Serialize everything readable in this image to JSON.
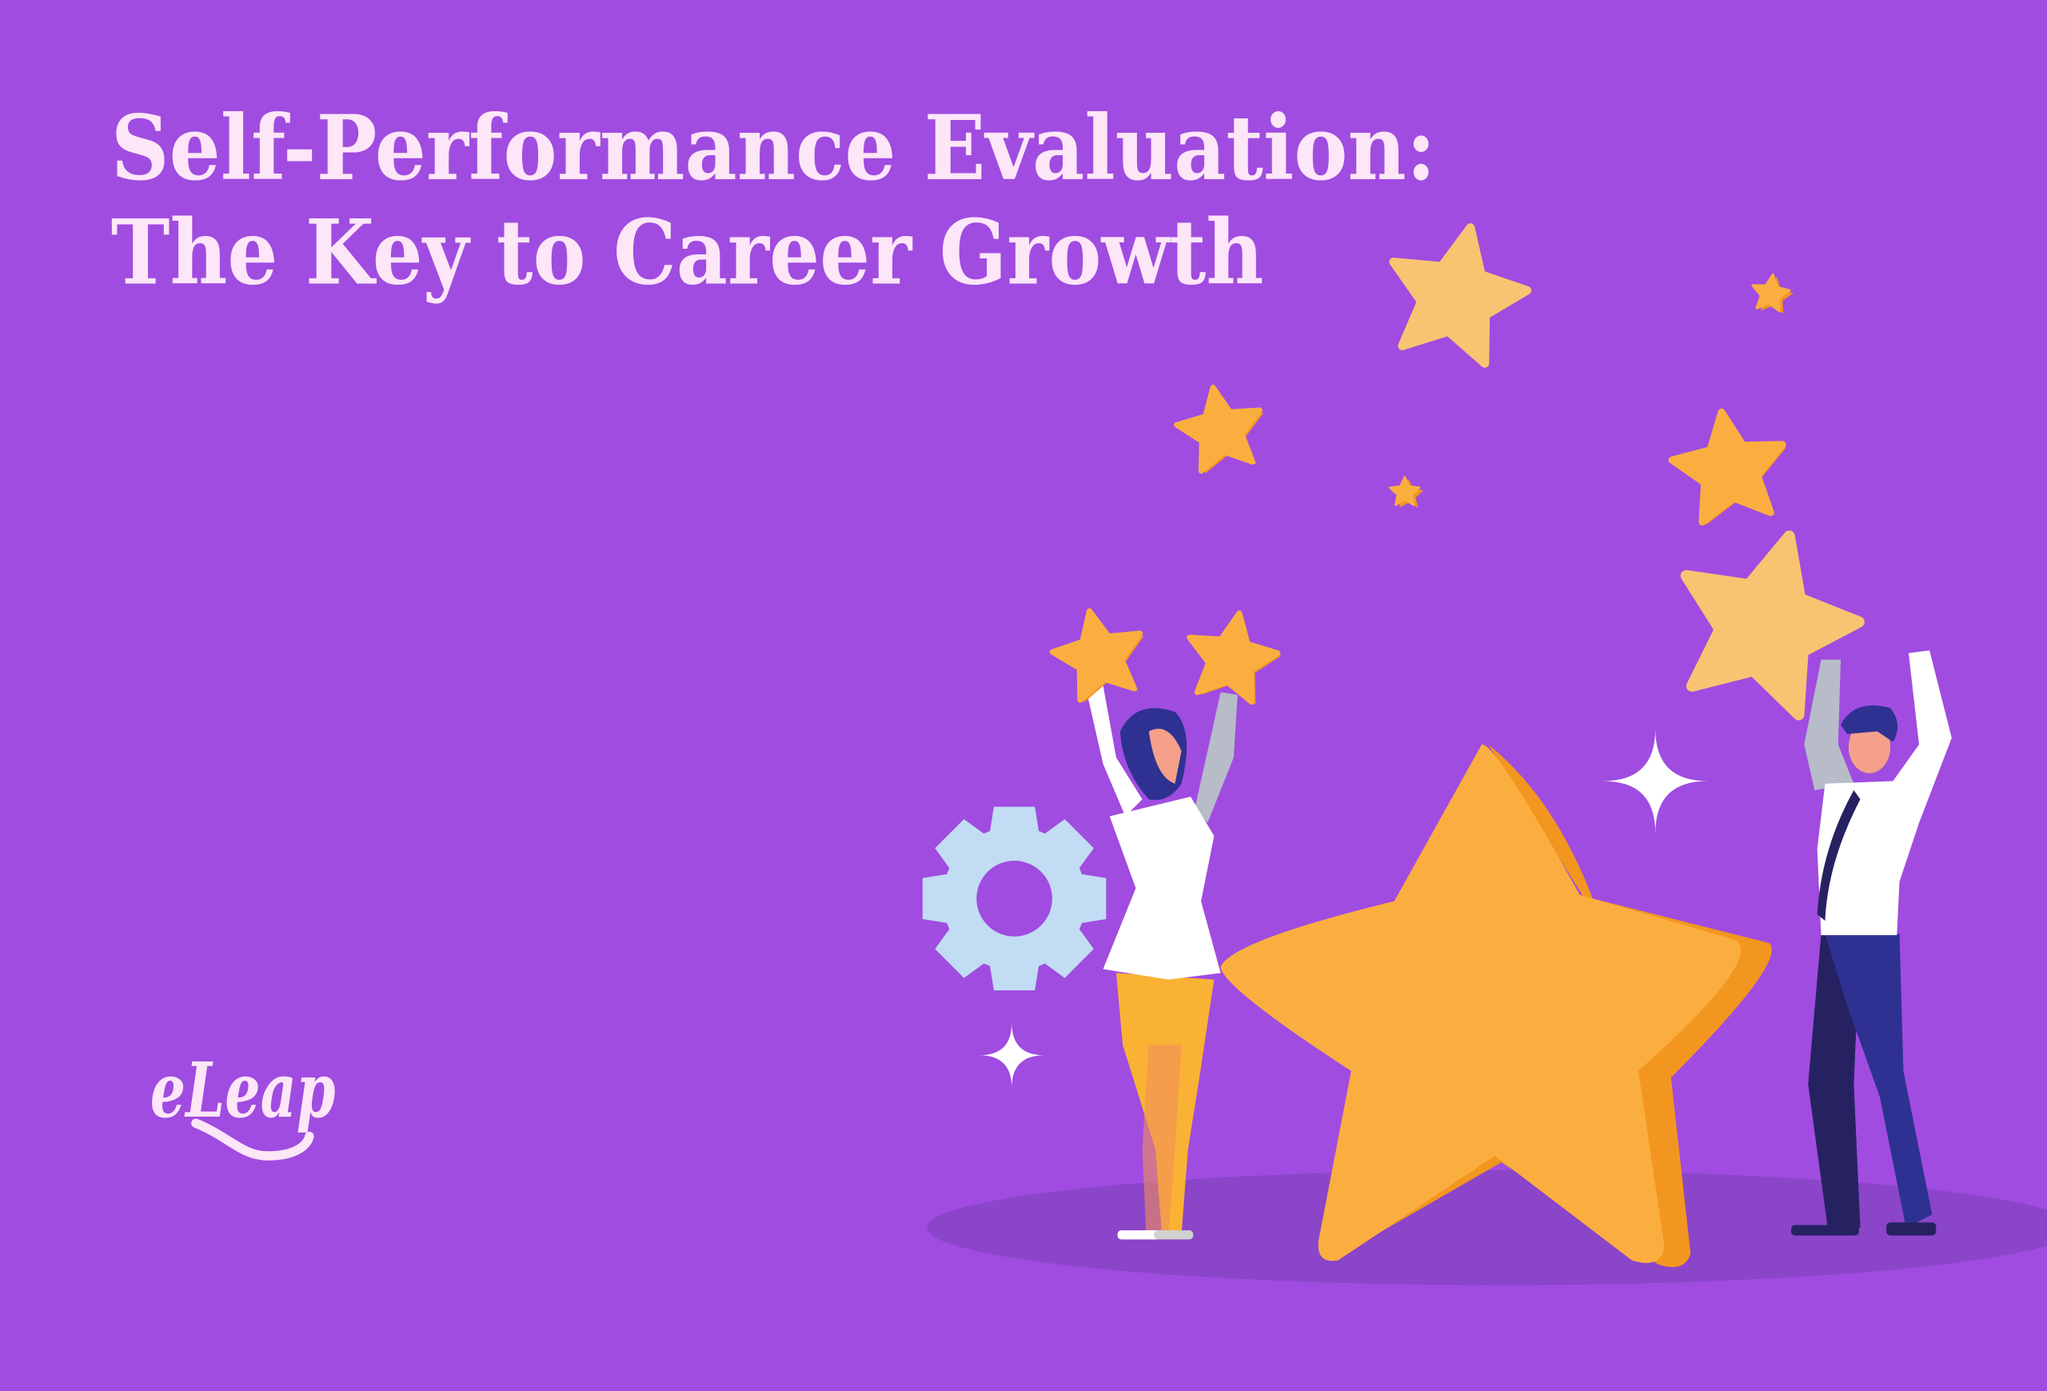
{
  "header": {
    "title_line1": "Self-Performance Evaluation:",
    "title_line2": "The Key to Career Growth"
  },
  "brand": {
    "logo_text": "eLeap"
  },
  "colors": {
    "background": "#a04ce0",
    "title_text": "#fde6f8",
    "star": "#fbae40",
    "star_shade": "#f3961f",
    "star_light": "#f8c471",
    "gear": "#c1dcf3",
    "shadow": "#8a45c9",
    "navy": "#2e3192"
  },
  "illustration": {
    "icons": [
      "big-star-icon",
      "small-star-icon",
      "gear-icon",
      "sparkle-icon"
    ],
    "figures": [
      "woman-holding-stars",
      "man-holding-star"
    ]
  }
}
